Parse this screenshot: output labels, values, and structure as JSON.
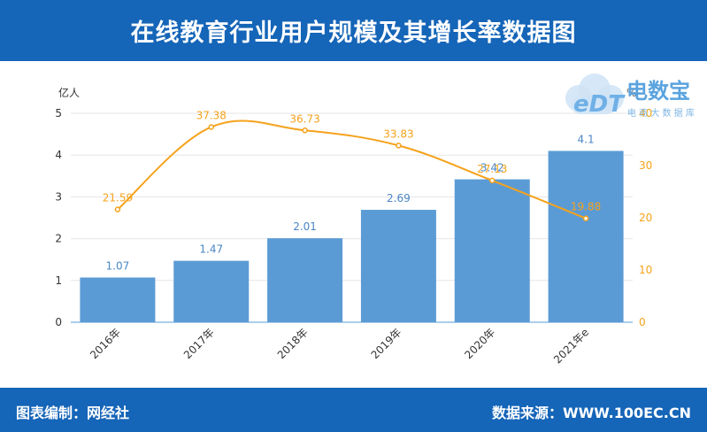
{
  "header": {
    "title": "在线教育行业用户规模及其增长率数据图"
  },
  "footer": {
    "editor": "图表编制：网经社",
    "source": "数据来源：WWW.100EC.CN"
  },
  "logo": {
    "mark_text": "eDT",
    "brand": "电数宝",
    "tagline": "电 商 大 数 据 库"
  },
  "colors": {
    "bar": "#5b9bd5",
    "line": "#f5a21b",
    "header": "#1565b8",
    "bar_label": "#4a86c5"
  },
  "chart_data": {
    "type": "bar",
    "categories": [
      "2016年",
      "2017年",
      "2018年",
      "2019年",
      "2020年",
      "2021年e"
    ],
    "left_unit": "亿人",
    "right_unit": "%",
    "ylim": [
      0,
      5
    ],
    "y2lim": [
      0,
      40
    ],
    "yticks": [
      "0",
      "1",
      "2",
      "3",
      "4",
      "5"
    ],
    "y2ticks": [
      "0",
      "10",
      "20",
      "30",
      "40"
    ],
    "series": [
      {
        "kind": "bar",
        "axis": "left",
        "values": [
          1.07,
          1.47,
          2.01,
          2.69,
          3.42,
          4.1
        ],
        "labels": [
          "1.07",
          "1.47",
          "2.01",
          "2.69",
          "3.42",
          "4.1"
        ]
      },
      {
        "kind": "line",
        "axis": "right",
        "values": [
          21.59,
          37.38,
          36.73,
          33.83,
          27.13,
          19.88
        ],
        "labels": [
          "21.59",
          "37.38",
          "36.73",
          "33.83",
          "27.13",
          "19.88"
        ]
      }
    ],
    "grid": true
  }
}
